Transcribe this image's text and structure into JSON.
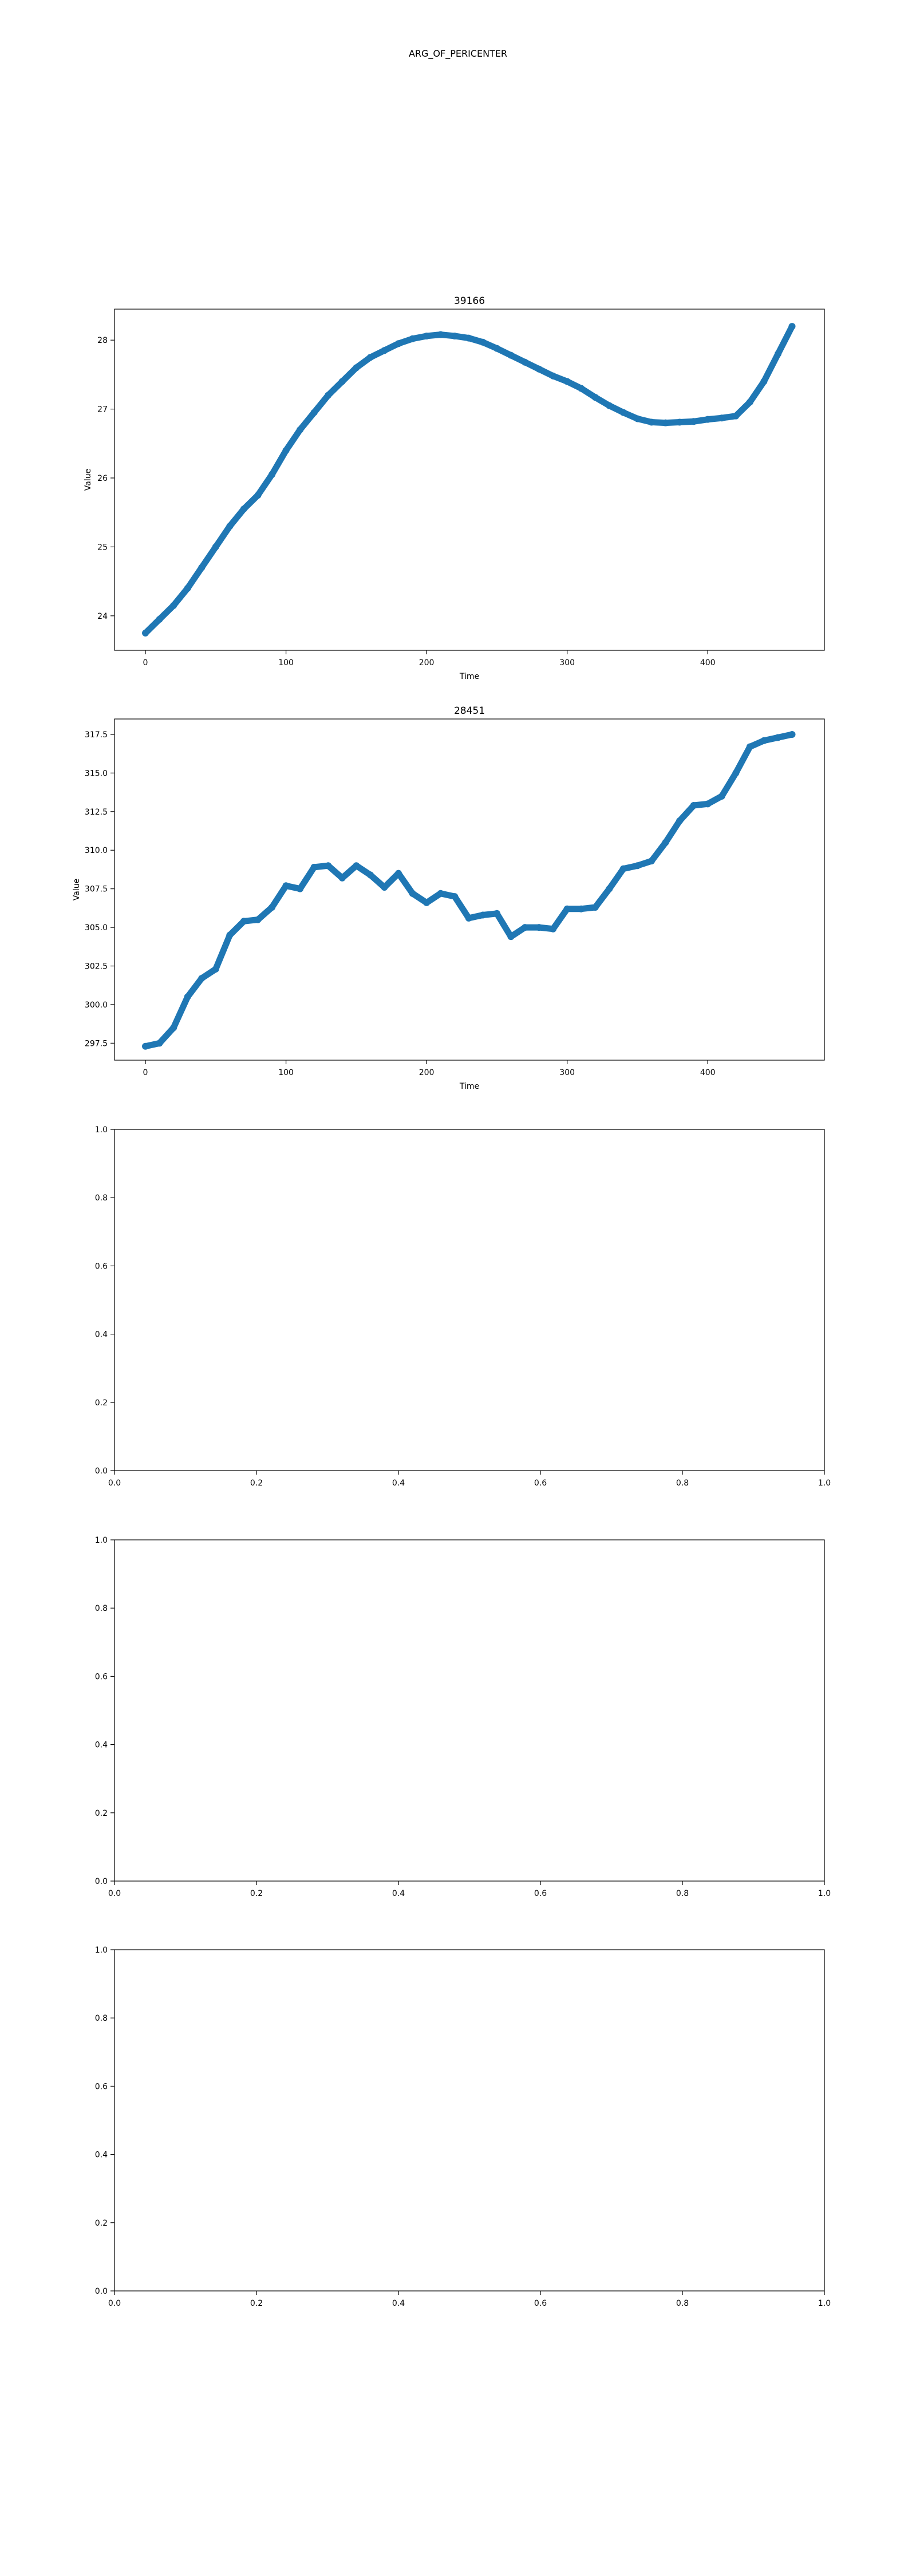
{
  "figure": {
    "suptitle": "ARG_OF_PERICENTER"
  },
  "colors": {
    "series": "#1f77b4",
    "axis": "#000000",
    "background": "#ffffff"
  },
  "chart_data": [
    {
      "type": "scatter",
      "title": "39166",
      "xlabel": "Time",
      "ylabel": "Value",
      "xlim": [
        -22,
        483
      ],
      "ylim": [
        23.5,
        28.45
      ],
      "xticks": [
        0,
        100,
        200,
        300,
        400
      ],
      "yticks": [
        24,
        25,
        26,
        27,
        28
      ],
      "ytick_labels": [
        "24",
        "25",
        "26",
        "27",
        "28"
      ],
      "grid": false,
      "series": [
        {
          "color": "#1f77b4",
          "marker": "o",
          "x": [
            0,
            10,
            20,
            30,
            40,
            50,
            60,
            70,
            80,
            90,
            100,
            110,
            120,
            130,
            140,
            150,
            160,
            170,
            180,
            190,
            200,
            210,
            220,
            230,
            240,
            250,
            260,
            270,
            280,
            290,
            300,
            310,
            320,
            330,
            340,
            350,
            360,
            370,
            380,
            390,
            400,
            410,
            420,
            430,
            440,
            450,
            460
          ],
          "y": [
            23.75,
            23.95,
            24.15,
            24.4,
            24.7,
            25.0,
            25.3,
            25.55,
            25.75,
            26.05,
            26.4,
            26.7,
            26.95,
            27.2,
            27.4,
            27.6,
            27.75,
            27.85,
            27.95,
            28.02,
            28.06,
            28.08,
            28.06,
            28.03,
            27.97,
            27.88,
            27.78,
            27.68,
            27.58,
            27.48,
            27.4,
            27.3,
            27.17,
            27.05,
            26.95,
            26.86,
            26.81,
            26.8,
            26.81,
            26.82,
            26.85,
            26.87,
            26.9,
            27.1,
            27.4,
            27.8,
            28.2
          ]
        }
      ]
    },
    {
      "type": "scatter",
      "title": "28451",
      "xlabel": "Time",
      "ylabel": "Value",
      "xlim": [
        -22,
        483
      ],
      "ylim": [
        296.4,
        318.5
      ],
      "xticks": [
        0,
        100,
        200,
        300,
        400
      ],
      "yticks": [
        297.5,
        300.0,
        302.5,
        305.0,
        307.5,
        310.0,
        312.5,
        315.0,
        317.5
      ],
      "ytick_labels": [
        "297.5",
        "300.0",
        "302.5",
        "305.0",
        "307.5",
        "310.0",
        "312.5",
        "315.0",
        "317.5"
      ],
      "grid": false,
      "series": [
        {
          "color": "#1f77b4",
          "marker": "o",
          "x": [
            0,
            10,
            20,
            30,
            40,
            50,
            60,
            70,
            80,
            90,
            100,
            110,
            120,
            130,
            140,
            150,
            160,
            170,
            180,
            190,
            200,
            210,
            220,
            230,
            240,
            250,
            260,
            270,
            280,
            290,
            300,
            310,
            320,
            330,
            340,
            350,
            360,
            370,
            380,
            390,
            400,
            410,
            420,
            430,
            440,
            450,
            460
          ],
          "y": [
            297.3,
            297.5,
            298.5,
            300.5,
            301.7,
            302.3,
            304.5,
            305.4,
            305.5,
            306.3,
            307.7,
            307.5,
            308.9,
            309.0,
            308.2,
            309.0,
            308.4,
            307.6,
            308.5,
            307.2,
            306.6,
            307.2,
            307.0,
            305.6,
            305.8,
            305.9,
            304.4,
            305.0,
            305.0,
            304.9,
            306.2,
            306.2,
            306.3,
            307.5,
            308.8,
            309.0,
            309.3,
            310.5,
            311.9,
            312.9,
            313.0,
            313.5,
            315.0,
            316.7,
            317.1,
            317.3,
            317.5
          ]
        }
      ]
    },
    {
      "type": "scatter",
      "title": "",
      "xlim": [
        0,
        1
      ],
      "ylim": [
        0,
        1
      ],
      "xticks": [
        0.0,
        0.2,
        0.4,
        0.6,
        0.8,
        1.0
      ],
      "xtick_labels": [
        "0.0",
        "0.2",
        "0.4",
        "0.6",
        "0.8",
        "1.0"
      ],
      "yticks": [
        0.0,
        0.2,
        0.4,
        0.6,
        0.8,
        1.0
      ],
      "ytick_labels": [
        "0.0",
        "0.2",
        "0.4",
        "0.6",
        "0.8",
        "1.0"
      ],
      "grid": false,
      "series": []
    },
    {
      "type": "scatter",
      "title": "",
      "xlim": [
        0,
        1
      ],
      "ylim": [
        0,
        1
      ],
      "xticks": [
        0.0,
        0.2,
        0.4,
        0.6,
        0.8,
        1.0
      ],
      "xtick_labels": [
        "0.0",
        "0.2",
        "0.4",
        "0.6",
        "0.8",
        "1.0"
      ],
      "yticks": [
        0.0,
        0.2,
        0.4,
        0.6,
        0.8,
        1.0
      ],
      "ytick_labels": [
        "0.0",
        "0.2",
        "0.4",
        "0.6",
        "0.8",
        "1.0"
      ],
      "grid": false,
      "series": []
    },
    {
      "type": "scatter",
      "title": "",
      "xlim": [
        0,
        1
      ],
      "ylim": [
        0,
        1
      ],
      "xticks": [
        0.0,
        0.2,
        0.4,
        0.6,
        0.8,
        1.0
      ],
      "xtick_labels": [
        "0.0",
        "0.2",
        "0.4",
        "0.6",
        "0.8",
        "1.0"
      ],
      "yticks": [
        0.0,
        0.2,
        0.4,
        0.6,
        0.8,
        1.0
      ],
      "ytick_labels": [
        "0.0",
        "0.2",
        "0.4",
        "0.6",
        "0.8",
        "1.0"
      ],
      "grid": false,
      "series": []
    }
  ]
}
